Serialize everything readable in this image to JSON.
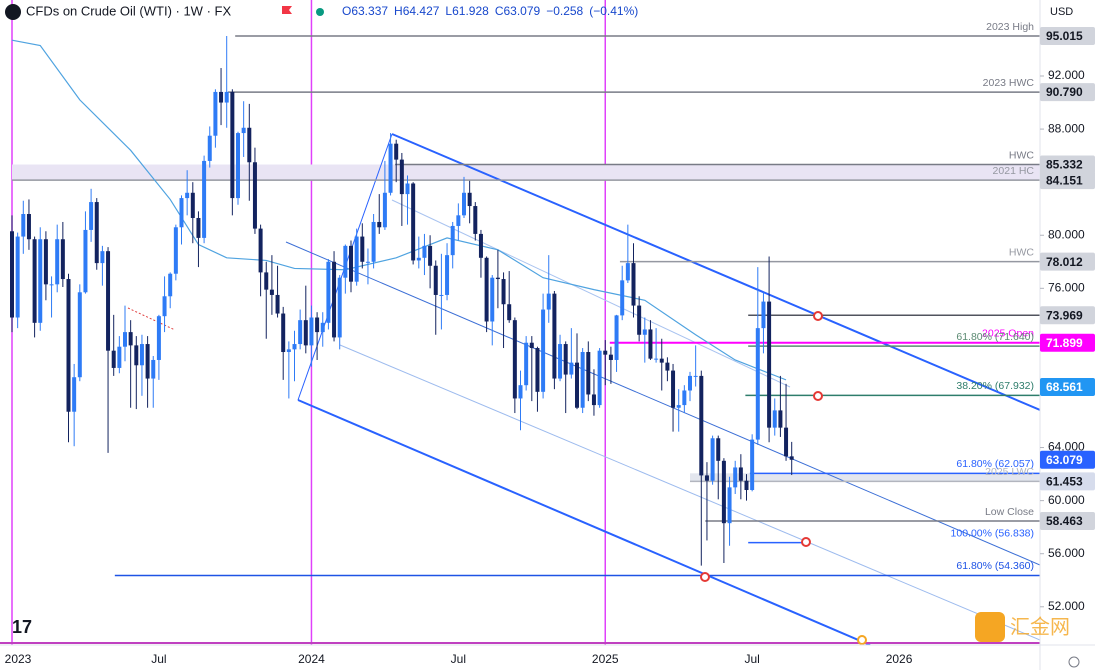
{
  "header": {
    "title": "CFDs on Crude Oil (WTI) · 1W · FX",
    "ohlc_legend": [
      {
        "value": 63.337,
        "label": "O63.337"
      },
      {
        "value": 64.427,
        "label": "H64.427"
      },
      {
        "value": 61.928,
        "label": "L61.928"
      },
      {
        "value": 63.079,
        "label": "C63.079"
      },
      {
        "value": -0.258,
        "label": "−0.258"
      },
      {
        "value": -0.41,
        "label": "(−0.41%)"
      }
    ],
    "currency": "USD",
    "watermark": "汇金网"
  },
  "chart_data": {
    "type": "candlestick",
    "up_color": "#2e7bf6",
    "down_color": "#13235f",
    "ylim": [
      49.12,
      97.728
    ],
    "yticks": [
      {
        "value": 92,
        "label": "92.000"
      },
      {
        "value": 88,
        "label": "88.000"
      },
      {
        "value": 80,
        "label": "80.000"
      },
      {
        "value": 76,
        "label": "76.000"
      },
      {
        "value": 64,
        "label": "64.000"
      },
      {
        "value": 60,
        "label": "60.000"
      },
      {
        "value": 56,
        "label": "56.000"
      },
      {
        "value": 52,
        "label": "52.000"
      }
    ],
    "xlabels": [
      {
        "label": "2023",
        "at": 0,
        "year": true
      },
      {
        "label": "Jul",
        "at": 26
      },
      {
        "label": "2024",
        "at": 53,
        "year": true
      },
      {
        "label": "Jul",
        "at": 79
      },
      {
        "label": "2025",
        "at": 105,
        "year": true
      },
      {
        "label": "Jul",
        "at": 131
      },
      {
        "label": "2026",
        "at": 157
      }
    ],
    "candles": [
      [
        80.3,
        81.5,
        72.7,
        73.8
      ],
      [
        73.8,
        80.2,
        73.0,
        79.9
      ],
      [
        79.9,
        82.6,
        78.6,
        81.6
      ],
      [
        81.6,
        82.7,
        78.9,
        79.7
      ],
      [
        79.7,
        79.9,
        72.3,
        73.4
      ],
      [
        73.4,
        80.6,
        72.8,
        79.7
      ],
      [
        79.7,
        80.3,
        75.1,
        76.3
      ],
      [
        76.3,
        76.9,
        73.8,
        76.3
      ],
      [
        76.3,
        80.8,
        75.7,
        79.7
      ],
      [
        79.7,
        81.0,
        76.1,
        76.7
      ],
      [
        76.7,
        77.1,
        64.4,
        66.7
      ],
      [
        66.7,
        70.3,
        64.1,
        69.3
      ],
      [
        69.3,
        76.3,
        69.0,
        75.7
      ],
      [
        75.7,
        81.8,
        75.6,
        80.4
      ],
      [
        80.4,
        83.5,
        79.5,
        82.5
      ],
      [
        82.5,
        82.8,
        77.4,
        77.9
      ],
      [
        77.9,
        79.2,
        76.2,
        78.8
      ],
      [
        78.8,
        79.1,
        63.6,
        71.3
      ],
      [
        71.3,
        74.0,
        69.4,
        70.0
      ],
      [
        70.0,
        72.4,
        69.6,
        71.6
      ],
      [
        71.6,
        74.7,
        70.5,
        72.7
      ],
      [
        72.7,
        73.6,
        67.0,
        71.7
      ],
      [
        71.7,
        72.4,
        66.9,
        70.2
      ],
      [
        70.2,
        72.5,
        67.9,
        71.8
      ],
      [
        71.8,
        72.4,
        67.0,
        69.2
      ],
      [
        69.2,
        70.9,
        67.0,
        70.6
      ],
      [
        70.6,
        74.0,
        69.1,
        73.9
      ],
      [
        73.9,
        76.9,
        72.7,
        75.4
      ],
      [
        75.4,
        77.2,
        74.5,
        77.1
      ],
      [
        77.1,
        80.8,
        76.6,
        80.6
      ],
      [
        80.6,
        83.0,
        79.3,
        82.8
      ],
      [
        82.8,
        84.9,
        81.5,
        83.2
      ],
      [
        83.2,
        84.0,
        79.4,
        81.3
      ],
      [
        81.3,
        81.8,
        77.6,
        79.8
      ],
      [
        79.8,
        86.0,
        79.4,
        85.6
      ],
      [
        85.6,
        88.2,
        85.1,
        87.5
      ],
      [
        87.5,
        91.0,
        86.6,
        90.8
      ],
      [
        90.8,
        92.6,
        88.3,
        90.0
      ],
      [
        90.0,
        95.015,
        88.1,
        90.8
      ],
      [
        90.8,
        91.0,
        81.5,
        82.8
      ],
      [
        82.8,
        87.8,
        82.3,
        87.7
      ],
      [
        87.7,
        90.1,
        85.9,
        88.1
      ],
      [
        88.1,
        89.9,
        82.6,
        85.5
      ],
      [
        85.5,
        86.6,
        80.1,
        80.5
      ],
      [
        80.5,
        80.8,
        75.4,
        77.2
      ],
      [
        77.2,
        78.0,
        72.2,
        75.9
      ],
      [
        75.9,
        78.5,
        74.0,
        75.5
      ],
      [
        75.5,
        77.7,
        73.8,
        74.1
      ],
      [
        74.1,
        74.6,
        69.1,
        71.2
      ],
      [
        71.2,
        72.0,
        67.7,
        71.4
      ],
      [
        71.4,
        72.8,
        69.0,
        71.8
      ],
      [
        71.8,
        74.4,
        71.4,
        73.6
      ],
      [
        73.6,
        76.2,
        71.1,
        71.7
      ],
      [
        71.7,
        74.7,
        70.1,
        73.8
      ],
      [
        73.8,
        74.2,
        70.6,
        72.7
      ],
      [
        72.7,
        74.2,
        71.6,
        73.4
      ],
      [
        73.4,
        78.2,
        72.9,
        78.0
      ],
      [
        78.0,
        78.8,
        72.0,
        72.3
      ],
      [
        72.3,
        77.0,
        71.4,
        76.8
      ],
      [
        76.8,
        79.3,
        75.6,
        79.2
      ],
      [
        79.2,
        79.6,
        75.7,
        76.5
      ],
      [
        76.5,
        80.5,
        76.2,
        79.9
      ],
      [
        79.9,
        80.9,
        77.5,
        78.0
      ],
      [
        78.0,
        79.0,
        76.3,
        78.0
      ],
      [
        78.0,
        81.6,
        77.5,
        81.0
      ],
      [
        81.0,
        83.1,
        80.1,
        80.6
      ],
      [
        80.6,
        85.6,
        80.4,
        83.2
      ],
      [
        83.2,
        87.7,
        83.0,
        86.9
      ],
      [
        86.9,
        87.2,
        84.0,
        85.7
      ],
      [
        85.7,
        86.2,
        80.7,
        83.1
      ],
      [
        83.1,
        84.5,
        80.8,
        83.9
      ],
      [
        83.9,
        84.0,
        77.8,
        78.1
      ],
      [
        78.1,
        79.9,
        77.5,
        78.3
      ],
      [
        78.3,
        80.1,
        77.0,
        79.2
      ],
      [
        79.2,
        80.0,
        76.0,
        77.7
      ],
      [
        77.7,
        78.1,
        72.5,
        75.5
      ],
      [
        75.5,
        78.6,
        72.9,
        75.5
      ],
      [
        75.5,
        79.4,
        75.1,
        78.5
      ],
      [
        78.5,
        81.0,
        77.5,
        80.7
      ],
      [
        80.7,
        82.4,
        79.6,
        81.5
      ],
      [
        81.5,
        84.4,
        81.3,
        83.2
      ],
      [
        83.2,
        84.1,
        80.9,
        82.2
      ],
      [
        82.2,
        82.5,
        79.6,
        80.1
      ],
      [
        80.1,
        80.4,
        76.8,
        78.3
      ],
      [
        78.3,
        78.4,
        72.7,
        73.5
      ],
      [
        73.5,
        77.0,
        71.7,
        76.8
      ],
      [
        76.8,
        78.9,
        74.5,
        76.7
      ],
      [
        76.7,
        77.2,
        71.5,
        74.8
      ],
      [
        74.8,
        77.3,
        73.4,
        73.6
      ],
      [
        73.6,
        73.8,
        66.6,
        67.7
      ],
      [
        67.7,
        69.8,
        65.3,
        68.7
      ],
      [
        68.7,
        72.4,
        68.3,
        71.9
      ],
      [
        71.9,
        72.4,
        67.5,
        71.5
      ],
      [
        71.5,
        71.6,
        66.7,
        68.2
      ],
      [
        68.2,
        75.6,
        67.7,
        74.4
      ],
      [
        74.4,
        78.5,
        73.4,
        75.6
      ],
      [
        75.6,
        75.8,
        68.4,
        69.2
      ],
      [
        69.2,
        72.5,
        69.0,
        71.8
      ],
      [
        71.8,
        72.0,
        66.6,
        69.5
      ],
      [
        69.5,
        73.0,
        69.2,
        70.4
      ],
      [
        70.4,
        72.6,
        66.9,
        67.0
      ],
      [
        67.0,
        71.5,
        66.6,
        71.2
      ],
      [
        71.2,
        72.0,
        67.5,
        68.0
      ],
      [
        68.0,
        69.9,
        66.4,
        67.2
      ],
      [
        67.2,
        71.5,
        67.0,
        71.3
      ],
      [
        71.3,
        72.1,
        68.7,
        71.0
      ],
      [
        71.0,
        71.6,
        68.8,
        70.6
      ],
      [
        70.6,
        74.0,
        69.7,
        73.96
      ],
      [
        73.96,
        77.7,
        73.6,
        76.6
      ],
      [
        76.6,
        80.8,
        76.4,
        77.9
      ],
      [
        77.9,
        79.4,
        73.8,
        74.7
      ],
      [
        74.7,
        75.4,
        72.0,
        72.5
      ],
      [
        72.5,
        73.8,
        70.4,
        72.9
      ],
      [
        72.9,
        73.6,
        70.6,
        70.7
      ],
      [
        70.7,
        73.0,
        70.4,
        70.7
      ],
      [
        70.7,
        72.2,
        68.3,
        70.4
      ],
      [
        70.4,
        70.8,
        69.0,
        69.8
      ],
      [
        69.8,
        70.3,
        65.2,
        67.0
      ],
      [
        67.0,
        68.4,
        65.2,
        67.2
      ],
      [
        67.2,
        68.7,
        66.6,
        68.3
      ],
      [
        68.3,
        69.7,
        67.5,
        69.4
      ],
      [
        69.4,
        71.7,
        68.6,
        69.4
      ],
      [
        69.4,
        69.8,
        55.1,
        61.9
      ],
      [
        61.9,
        62.9,
        57.0,
        61.5
      ],
      [
        61.5,
        64.9,
        61.2,
        64.7
      ],
      [
        64.7,
        64.9,
        60.1,
        63.0
      ],
      [
        63.0,
        63.2,
        55.3,
        58.3
      ],
      [
        58.3,
        61.8,
        56.6,
        61.0
      ],
      [
        61.0,
        63.0,
        60.5,
        62.5
      ],
      [
        62.5,
        63.5,
        60.1,
        61.5
      ],
      [
        61.5,
        62.0,
        60.0,
        60.8
      ],
      [
        60.8,
        65.0,
        60.7,
        64.6
      ],
      [
        64.6,
        77.6,
        64.2,
        73.0
      ],
      [
        73.0,
        75.7,
        71.1,
        75.0
      ],
      [
        75.0,
        78.4,
        64.4,
        65.5
      ],
      [
        65.5,
        67.7,
        64.9,
        66.8
      ],
      [
        66.8,
        69.4,
        64.8,
        65.5
      ],
      [
        65.5,
        68.8,
        63.0,
        63.34
      ],
      [
        63.337,
        64.427,
        61.928,
        63.079
      ]
    ],
    "ma": {
      "color": "#4fa3e0",
      "x": [
        0,
        5,
        12,
        21,
        28,
        33,
        38,
        45,
        50,
        59,
        68,
        77,
        86,
        94,
        103,
        112,
        121,
        128,
        137
      ],
      "values": [
        94.7,
        94.3,
        90.2,
        86.4,
        82.7,
        79.3,
        78.3,
        78.1,
        77.5,
        77.4,
        78.3,
        79.8,
        78.9,
        76.8,
        75.9,
        75.1,
        72.5,
        70.6,
        69.1
      ]
    },
    "levels": [
      {
        "value": 95.015,
        "text": "2023 High",
        "from": 39.5,
        "color": "#787b86"
      },
      {
        "value": 90.79,
        "text": "2023 HWC",
        "from": 38.2,
        "color": "#787b86"
      },
      {
        "value": 85.332,
        "text": "HWC",
        "from": 67.8,
        "color": "#787b86",
        "fill": "#e9e4f4"
      },
      {
        "value": 84.151,
        "text": "2021 HC",
        "from": 0,
        "color": "#9598a1"
      },
      {
        "value": 78.012,
        "text": "HWC",
        "from": 107.6,
        "color": "#9598a1"
      },
      {
        "value": 73.969,
        "from": 130.3,
        "color": "#50535e"
      },
      {
        "value": 71.899,
        "text": "2025 Open",
        "from": 105.8,
        "color": "#ff00ff"
      },
      {
        "value": 71.64,
        "text": "61.80% (71.640)",
        "from": 130.3,
        "color": "#5b8a72"
      },
      {
        "value": 67.932,
        "text": "38.20% (67.932)",
        "from": 129.8,
        "color": "#2e7d6b"
      },
      {
        "value": 62.057,
        "text": "61.80% (62.057)",
        "from": 130.6,
        "color": "#2962ff",
        "fill": "#e3e6ee"
      },
      {
        "value": 61.453,
        "text": "2025 LWC",
        "from": 120,
        "color": "#b2b5be"
      },
      {
        "value": 58.463,
        "text": "Low Close",
        "from": 122.7,
        "color": "#787b86"
      },
      {
        "value": 56.838,
        "text": "100.00% (56.838)",
        "from": 130.3,
        "to": 141.2,
        "color": "#2962ff"
      },
      {
        "value": 54.36,
        "text": "61.80% (54.360)",
        "from": 18.2,
        "color": "#1e53e5"
      }
    ],
    "price_tags": [
      {
        "value": 95.015,
        "label": "95.015",
        "bg": "#d1d4dc",
        "fg": "#131722"
      },
      {
        "value": 90.79,
        "label": "90.790",
        "bg": "#d1d4dc",
        "fg": "#131722"
      },
      {
        "value": 85.332,
        "label": "85.332",
        "bg": "#d1d4dc",
        "fg": "#131722"
      },
      {
        "value": 84.151,
        "label": "84.151",
        "bg": "#d1d4dc",
        "fg": "#131722"
      },
      {
        "value": 78.012,
        "label": "78.012",
        "bg": "#d1d4dc",
        "fg": "#131722"
      },
      {
        "value": 73.969,
        "label": "73.969",
        "bg": "#d1d4dc",
        "fg": "#131722"
      },
      {
        "value": 71.899,
        "label": "71.899",
        "bg": "#ff00ff",
        "fg": "#ffffff"
      },
      {
        "value": 68.561,
        "label": "68.561",
        "bg": "#2196f3",
        "fg": "#ffffff"
      },
      {
        "value": 63.079,
        "label": "63.079",
        "bg": "#2962ff",
        "fg": "#ffffff"
      },
      {
        "value": 61.453,
        "label": "61.453",
        "bg": "#d6dcec",
        "fg": "#131722"
      },
      {
        "value": 58.463,
        "label": "58.463",
        "bg": "#d1d4dc",
        "fg": "#131722"
      }
    ]
  }
}
